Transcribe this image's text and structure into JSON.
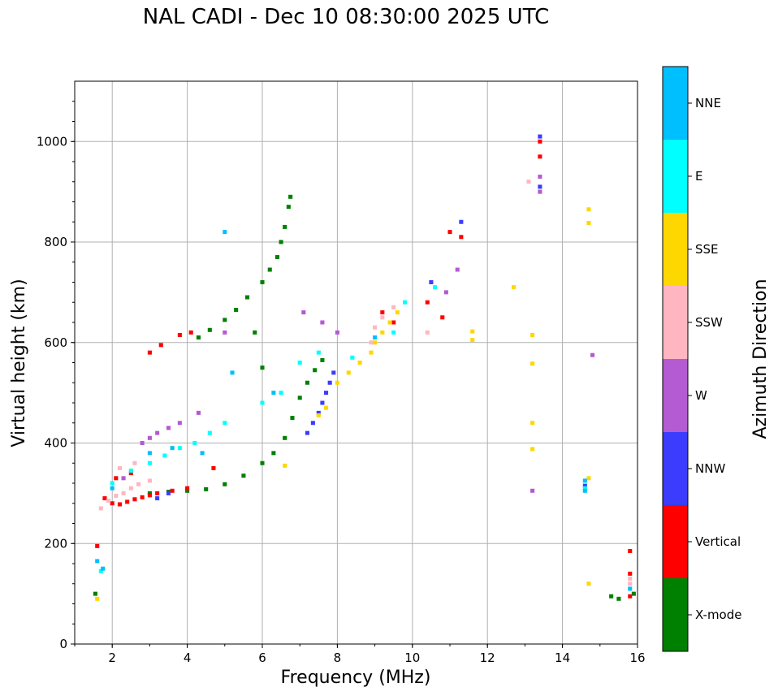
{
  "chart_data": {
    "type": "scatter",
    "title": "NAL CADI - Dec 10 08:30:00 2025 UTC",
    "xlabel": "Frequency (MHz)",
    "ylabel": "Virtual height (km)",
    "xlim": [
      1,
      16
    ],
    "ylim": [
      0,
      1120
    ],
    "xticks": [
      2,
      4,
      6,
      8,
      10,
      12,
      14,
      16
    ],
    "yticks": [
      0,
      200,
      400,
      600,
      800,
      1000
    ],
    "grid": true,
    "colorbar": {
      "label": "Azimuth Direction",
      "categories": [
        {
          "name": "X-mode",
          "color": "#008000"
        },
        {
          "name": "Vertical",
          "color": "#ff0000"
        },
        {
          "name": "NNW",
          "color": "#3c3cff"
        },
        {
          "name": "W",
          "color": "#b45ad2"
        },
        {
          "name": "SSW",
          "color": "#ffb6c1"
        },
        {
          "name": "SSE",
          "color": "#ffd700"
        },
        {
          "name": "E",
          "color": "#00ffff"
        },
        {
          "name": "NNE",
          "color": "#00bfff"
        }
      ]
    },
    "series": [
      {
        "name": "X-mode",
        "points": [
          [
            1.55,
            100
          ],
          [
            3.0,
            300
          ],
          [
            3.5,
            303
          ],
          [
            4.0,
            305
          ],
          [
            4.5,
            308
          ],
          [
            5.0,
            318
          ],
          [
            5.5,
            335
          ],
          [
            6.0,
            360
          ],
          [
            6.3,
            380
          ],
          [
            6.6,
            410
          ],
          [
            6.8,
            450
          ],
          [
            7.0,
            490
          ],
          [
            7.2,
            520
          ],
          [
            7.4,
            545
          ],
          [
            7.6,
            565
          ],
          [
            4.3,
            610
          ],
          [
            4.6,
            625
          ],
          [
            5.0,
            645
          ],
          [
            5.3,
            665
          ],
          [
            5.6,
            690
          ],
          [
            6.0,
            720
          ],
          [
            6.2,
            745
          ],
          [
            6.4,
            770
          ],
          [
            6.5,
            800
          ],
          [
            6.6,
            830
          ],
          [
            6.7,
            870
          ],
          [
            6.75,
            890
          ],
          [
            5.8,
            620
          ],
          [
            6.0,
            550
          ],
          [
            15.3,
            95
          ],
          [
            15.5,
            90
          ],
          [
            15.9,
            100
          ]
        ]
      },
      {
        "name": "Vertical",
        "points": [
          [
            1.6,
            195
          ],
          [
            1.8,
            290
          ],
          [
            2.0,
            280
          ],
          [
            2.2,
            278
          ],
          [
            2.4,
            283
          ],
          [
            2.6,
            288
          ],
          [
            2.8,
            292
          ],
          [
            3.0,
            296
          ],
          [
            3.2,
            300
          ],
          [
            3.6,
            305
          ],
          [
            4.0,
            310
          ],
          [
            2.1,
            330
          ],
          [
            2.5,
            340
          ],
          [
            3.0,
            580
          ],
          [
            3.3,
            595
          ],
          [
            3.8,
            615
          ],
          [
            4.1,
            620
          ],
          [
            4.7,
            350
          ],
          [
            10.8,
            650
          ],
          [
            11.0,
            820
          ],
          [
            11.3,
            810
          ],
          [
            13.4,
            1000
          ],
          [
            13.4,
            970
          ],
          [
            15.8,
            185
          ],
          [
            15.8,
            140
          ],
          [
            15.8,
            95
          ],
          [
            9.2,
            660
          ],
          [
            9.5,
            640
          ],
          [
            10.4,
            680
          ]
        ]
      },
      {
        "name": "NNW",
        "points": [
          [
            7.2,
            420
          ],
          [
            7.35,
            440
          ],
          [
            7.5,
            460
          ],
          [
            7.6,
            480
          ],
          [
            7.7,
            500
          ],
          [
            7.8,
            520
          ],
          [
            7.9,
            540
          ],
          [
            3.2,
            290
          ],
          [
            3.5,
            300
          ],
          [
            13.4,
            910
          ],
          [
            13.4,
            1010
          ],
          [
            14.6,
            315
          ],
          [
            11.3,
            840
          ],
          [
            10.5,
            720
          ]
        ]
      },
      {
        "name": "W",
        "points": [
          [
            2.8,
            400
          ],
          [
            3.0,
            410
          ],
          [
            3.2,
            420
          ],
          [
            3.5,
            430
          ],
          [
            3.8,
            440
          ],
          [
            4.3,
            460
          ],
          [
            5.0,
            620
          ],
          [
            7.1,
            660
          ],
          [
            7.6,
            640
          ],
          [
            8.0,
            620
          ],
          [
            13.4,
            900
          ],
          [
            13.4,
            930
          ],
          [
            13.2,
            305
          ],
          [
            14.8,
            575
          ],
          [
            11.2,
            745
          ],
          [
            10.9,
            700
          ],
          [
            2.3,
            330
          ]
        ]
      },
      {
        "name": "SSW",
        "points": [
          [
            1.7,
            270
          ],
          [
            1.9,
            285
          ],
          [
            2.1,
            295
          ],
          [
            2.3,
            300
          ],
          [
            2.5,
            310
          ],
          [
            2.7,
            318
          ],
          [
            3.0,
            325
          ],
          [
            2.2,
            350
          ],
          [
            2.6,
            360
          ],
          [
            9.0,
            630
          ],
          [
            9.2,
            650
          ],
          [
            9.5,
            670
          ],
          [
            13.1,
            920
          ],
          [
            10.4,
            620
          ],
          [
            15.8,
            120
          ],
          [
            15.8,
            130
          ],
          [
            8.9,
            600
          ]
        ]
      },
      {
        "name": "SSE",
        "points": [
          [
            8.0,
            520
          ],
          [
            8.3,
            540
          ],
          [
            8.6,
            560
          ],
          [
            8.9,
            580
          ],
          [
            9.0,
            600
          ],
          [
            9.2,
            620
          ],
          [
            9.4,
            640
          ],
          [
            9.6,
            660
          ],
          [
            7.7,
            470
          ],
          [
            7.5,
            455
          ],
          [
            12.7,
            710
          ],
          [
            13.2,
            615
          ],
          [
            13.2,
            558
          ],
          [
            13.2,
            440
          ],
          [
            13.2,
            388
          ],
          [
            14.7,
            865
          ],
          [
            14.7,
            838
          ],
          [
            14.7,
            330
          ],
          [
            14.7,
            120
          ],
          [
            11.6,
            622
          ],
          [
            11.6,
            605
          ],
          [
            6.6,
            355
          ],
          [
            1.6,
            90
          ]
        ]
      },
      {
        "name": "E",
        "points": [
          [
            2.0,
            320
          ],
          [
            2.5,
            345
          ],
          [
            3.0,
            360
          ],
          [
            3.4,
            375
          ],
          [
            3.8,
            390
          ],
          [
            4.2,
            400
          ],
          [
            4.6,
            420
          ],
          [
            5.0,
            440
          ],
          [
            6.0,
            480
          ],
          [
            6.5,
            500
          ],
          [
            7.0,
            560
          ],
          [
            7.5,
            580
          ],
          [
            9.5,
            620
          ],
          [
            9.8,
            680
          ],
          [
            10.6,
            710
          ],
          [
            14.6,
            310
          ],
          [
            1.7,
            145
          ],
          [
            8.4,
            570
          ]
        ]
      },
      {
        "name": "NNE",
        "points": [
          [
            1.6,
            165
          ],
          [
            1.75,
            150
          ],
          [
            2.0,
            310
          ],
          [
            3.0,
            380
          ],
          [
            3.6,
            390
          ],
          [
            4.4,
            380
          ],
          [
            5.2,
            540
          ],
          [
            6.3,
            500
          ],
          [
            5.0,
            820
          ],
          [
            9.0,
            610
          ],
          [
            14.6,
            325
          ],
          [
            14.6,
            305
          ],
          [
            15.8,
            110
          ]
        ]
      }
    ]
  }
}
